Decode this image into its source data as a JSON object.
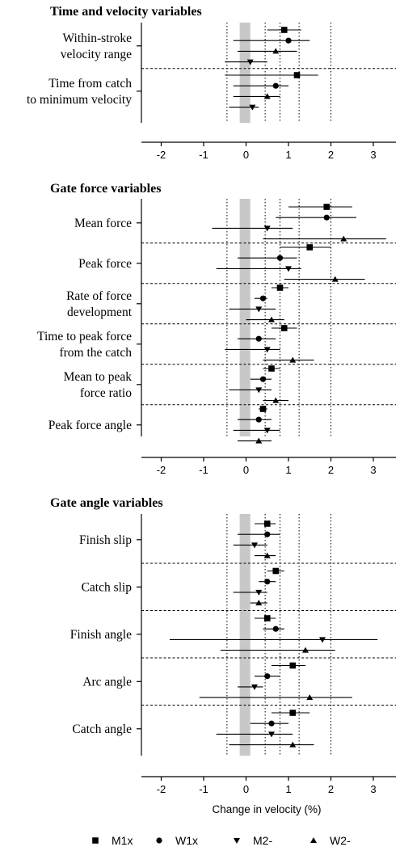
{
  "chart_data": {
    "type": "forest",
    "x_axis": {
      "label": "Change in velocity (%)",
      "ticks": [
        -2,
        -1,
        0,
        1,
        2,
        3
      ],
      "range": [
        -2.1,
        3.5
      ]
    },
    "reference_lines": {
      "dotted_x": [
        -0.45,
        0.45,
        0.8,
        1.25,
        2.0
      ],
      "shaded_band": [
        -0.15,
        0.1
      ]
    },
    "series": [
      {
        "name": "M1x",
        "marker": "square"
      },
      {
        "name": "W1x",
        "marker": "circle"
      },
      {
        "name": "M2-",
        "marker": "triangle-down"
      },
      {
        "name": "W2-",
        "marker": "triangle-up"
      }
    ],
    "sections": [
      {
        "title": "Time and velocity variables",
        "variables": [
          {
            "label": [
              "Within-stroke",
              "velocity range"
            ],
            "rows": [
              {
                "series": "M1x",
                "est": 0.9,
                "lo": 0.5,
                "hi": 1.3
              },
              {
                "series": "W1x",
                "est": 1.0,
                "lo": -0.3,
                "hi": 1.5
              },
              {
                "series": "W2-",
                "est": 0.7,
                "lo": -0.2,
                "hi": 1.2
              },
              {
                "series": "M2-",
                "est": 0.1,
                "lo": -0.5,
                "hi": 0.5
              }
            ]
          },
          {
            "label": [
              "Time from catch",
              "to minimum velocity"
            ],
            "rows": [
              {
                "series": "M1x",
                "est": 1.2,
                "lo": -0.5,
                "hi": 1.7
              },
              {
                "series": "W1x",
                "est": 0.7,
                "lo": -0.3,
                "hi": 1.0
              },
              {
                "series": "W2-",
                "est": 0.5,
                "lo": -0.3,
                "hi": 0.8
              },
              {
                "series": "M2-",
                "est": 0.15,
                "lo": -0.4,
                "hi": 0.3
              }
            ]
          }
        ]
      },
      {
        "title": "Gate force variables",
        "variables": [
          {
            "label": [
              "Mean force"
            ],
            "rows": [
              {
                "series": "M1x",
                "est": 1.9,
                "lo": 1.0,
                "hi": 2.5
              },
              {
                "series": "W1x",
                "est": 1.9,
                "lo": 0.7,
                "hi": 2.6
              },
              {
                "series": "M2-",
                "est": 0.5,
                "lo": -0.8,
                "hi": 1.1
              },
              {
                "series": "W2-",
                "est": 2.3,
                "lo": 0.4,
                "hi": 3.3
              }
            ]
          },
          {
            "label": [
              "Peak force"
            ],
            "rows": [
              {
                "series": "M1x",
                "est": 1.5,
                "lo": 0.8,
                "hi": 2.0
              },
              {
                "series": "W1x",
                "est": 0.8,
                "lo": -0.2,
                "hi": 1.2
              },
              {
                "series": "M2-",
                "est": 1.0,
                "lo": -0.7,
                "hi": 1.3
              },
              {
                "series": "W2-",
                "est": 2.1,
                "lo": 0.9,
                "hi": 2.8
              }
            ]
          },
          {
            "label": [
              "Rate of force",
              "development"
            ],
            "rows": [
              {
                "series": "M1x",
                "est": 0.8,
                "lo": 0.6,
                "hi": 1.0
              },
              {
                "series": "W1x",
                "est": 0.4,
                "lo": 0.2,
                "hi": 0.5
              },
              {
                "series": "M2-",
                "est": 0.3,
                "lo": -0.4,
                "hi": 0.7
              },
              {
                "series": "W2-",
                "est": 0.6,
                "lo": 0.0,
                "hi": 0.9
              }
            ]
          },
          {
            "label": [
              "Time to peak force",
              "from the catch"
            ],
            "rows": [
              {
                "series": "M1x",
                "est": 0.9,
                "lo": 0.6,
                "hi": 1.2
              },
              {
                "series": "W1x",
                "est": 0.3,
                "lo": -0.2,
                "hi": 0.7
              },
              {
                "series": "M2-",
                "est": 0.5,
                "lo": -0.5,
                "hi": 0.8
              },
              {
                "series": "W2-",
                "est": 1.1,
                "lo": 0.4,
                "hi": 1.6
              }
            ]
          },
          {
            "label": [
              "Mean to peak",
              "force ratio"
            ],
            "rows": [
              {
                "series": "M1x",
                "est": 0.6,
                "lo": 0.4,
                "hi": 0.8
              },
              {
                "series": "W1x",
                "est": 0.4,
                "lo": 0.1,
                "hi": 0.6
              },
              {
                "series": "M2-",
                "est": 0.3,
                "lo": -0.4,
                "hi": 0.6
              },
              {
                "series": "W2-",
                "est": 0.7,
                "lo": 0.4,
                "hi": 1.0
              }
            ]
          },
          {
            "label": [
              "Peak force angle"
            ],
            "rows": [
              {
                "series": "M1x",
                "est": 0.4,
                "lo": 0.3,
                "hi": 0.5
              },
              {
                "series": "W1x",
                "est": 0.3,
                "lo": -0.2,
                "hi": 0.6
              },
              {
                "series": "M2-",
                "est": 0.5,
                "lo": -0.3,
                "hi": 0.8
              },
              {
                "series": "W2-",
                "est": 0.3,
                "lo": -0.2,
                "hi": 0.6
              }
            ]
          }
        ]
      },
      {
        "title": "Gate angle variables",
        "variables": [
          {
            "label": [
              "Finish slip"
            ],
            "rows": [
              {
                "series": "M1x",
                "est": 0.5,
                "lo": 0.2,
                "hi": 0.7
              },
              {
                "series": "W1x",
                "est": 0.5,
                "lo": -0.2,
                "hi": 0.8
              },
              {
                "series": "M2-",
                "est": 0.2,
                "lo": -0.3,
                "hi": 0.5
              },
              {
                "series": "W2-",
                "est": 0.5,
                "lo": 0.2,
                "hi": 0.7
              }
            ]
          },
          {
            "label": [
              "Catch slip"
            ],
            "rows": [
              {
                "series": "M1x",
                "est": 0.7,
                "lo": 0.5,
                "hi": 0.9
              },
              {
                "series": "W1x",
                "est": 0.5,
                "lo": 0.3,
                "hi": 0.7
              },
              {
                "series": "M2-",
                "est": 0.3,
                "lo": -0.3,
                "hi": 0.5
              },
              {
                "series": "W2-",
                "est": 0.3,
                "lo": 0.1,
                "hi": 0.5
              }
            ]
          },
          {
            "label": [
              "Finish angle"
            ],
            "rows": [
              {
                "series": "M1x",
                "est": 0.5,
                "lo": 0.2,
                "hi": 0.7
              },
              {
                "series": "W1x",
                "est": 0.7,
                "lo": 0.4,
                "hi": 0.9
              },
              {
                "series": "M2-",
                "est": 1.8,
                "lo": -1.8,
                "hi": 3.1
              },
              {
                "series": "W2-",
                "est": 1.4,
                "lo": -0.6,
                "hi": 2.1
              }
            ]
          },
          {
            "label": [
              "Arc angle"
            ],
            "rows": [
              {
                "series": "M1x",
                "est": 1.1,
                "lo": 0.6,
                "hi": 1.4
              },
              {
                "series": "W1x",
                "est": 0.5,
                "lo": 0.2,
                "hi": 0.8
              },
              {
                "series": "M2-",
                "est": 0.2,
                "lo": -0.2,
                "hi": 0.4
              },
              {
                "series": "W2-",
                "est": 1.5,
                "lo": -1.1,
                "hi": 2.5
              }
            ]
          },
          {
            "label": [
              "Catch angle"
            ],
            "rows": [
              {
                "series": "M1x",
                "est": 1.1,
                "lo": 0.6,
                "hi": 1.5
              },
              {
                "series": "W1x",
                "est": 0.6,
                "lo": 0.1,
                "hi": 1.0
              },
              {
                "series": "M2-",
                "est": 0.6,
                "lo": -0.7,
                "hi": 1.1
              },
              {
                "series": "W2-",
                "est": 1.1,
                "lo": -0.4,
                "hi": 1.6
              }
            ]
          }
        ]
      }
    ]
  }
}
